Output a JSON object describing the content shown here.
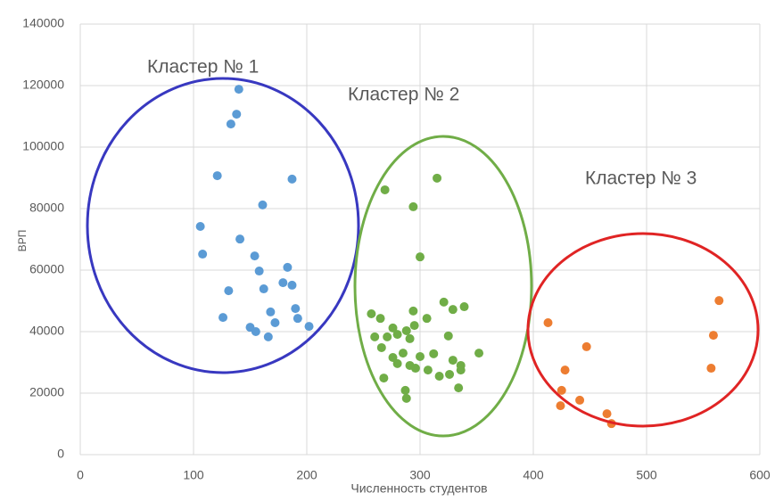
{
  "chart_data": {
    "type": "scatter",
    "xlabel": "Численность студентов",
    "ylabel": "ВРП",
    "xlim": [
      0,
      600
    ],
    "xticks": [
      0,
      100,
      200,
      300,
      400,
      500,
      600
    ],
    "ylim": [
      0,
      140000
    ],
    "yticks": [
      0,
      20000,
      40000,
      60000,
      80000,
      100000,
      120000,
      140000
    ],
    "grid": true,
    "annotations": [
      "Кластер № 1",
      "Кластер № 2",
      "Кластер № 3"
    ],
    "series": [
      {
        "color": "#5b9bd5",
        "x": [
          140,
          138,
          133,
          121,
          187,
          161,
          106,
          141,
          108,
          154,
          158,
          183,
          179,
          187,
          162,
          131,
          190,
          168,
          192,
          126,
          172,
          202,
          150,
          155,
          166
        ],
        "values": [
          118800,
          110700,
          107500,
          90700,
          89600,
          81200,
          74200,
          70100,
          65200,
          64600,
          59700,
          60900,
          55900,
          55100,
          53900,
          53300,
          47500,
          46400,
          44300,
          44600,
          42900,
          41700,
          41400,
          40000,
          38300
        ]
      },
      {
        "color": "#70ad47",
        "x": [
          269,
          315,
          294,
          300,
          257,
          321,
          329,
          339,
          265,
          294,
          306,
          288,
          295,
          276,
          260,
          271,
          280,
          291,
          325,
          266,
          285,
          300,
          276,
          280,
          291,
          312,
          352,
          336,
          336,
          296,
          307,
          317,
          326,
          268,
          329,
          334,
          287,
          288
        ],
        "values": [
          86100,
          89900,
          80600,
          64300,
          45800,
          49600,
          47200,
          48100,
          44300,
          46700,
          44300,
          40300,
          42000,
          41200,
          38300,
          38300,
          39100,
          37700,
          38600,
          34800,
          33000,
          31900,
          31600,
          29600,
          29000,
          32800,
          33000,
          29000,
          27500,
          28100,
          27500,
          25500,
          26100,
          24900,
          30700,
          21700,
          20900,
          18300
        ]
      },
      {
        "color": "#ed7d31",
        "x": [
          413,
          564,
          559,
          447,
          428,
          557,
          425,
          441,
          424,
          465,
          469
        ],
        "values": [
          42900,
          50100,
          38800,
          35100,
          27500,
          28100,
          20900,
          17700,
          15900,
          13300,
          10100
        ]
      }
    ]
  }
}
